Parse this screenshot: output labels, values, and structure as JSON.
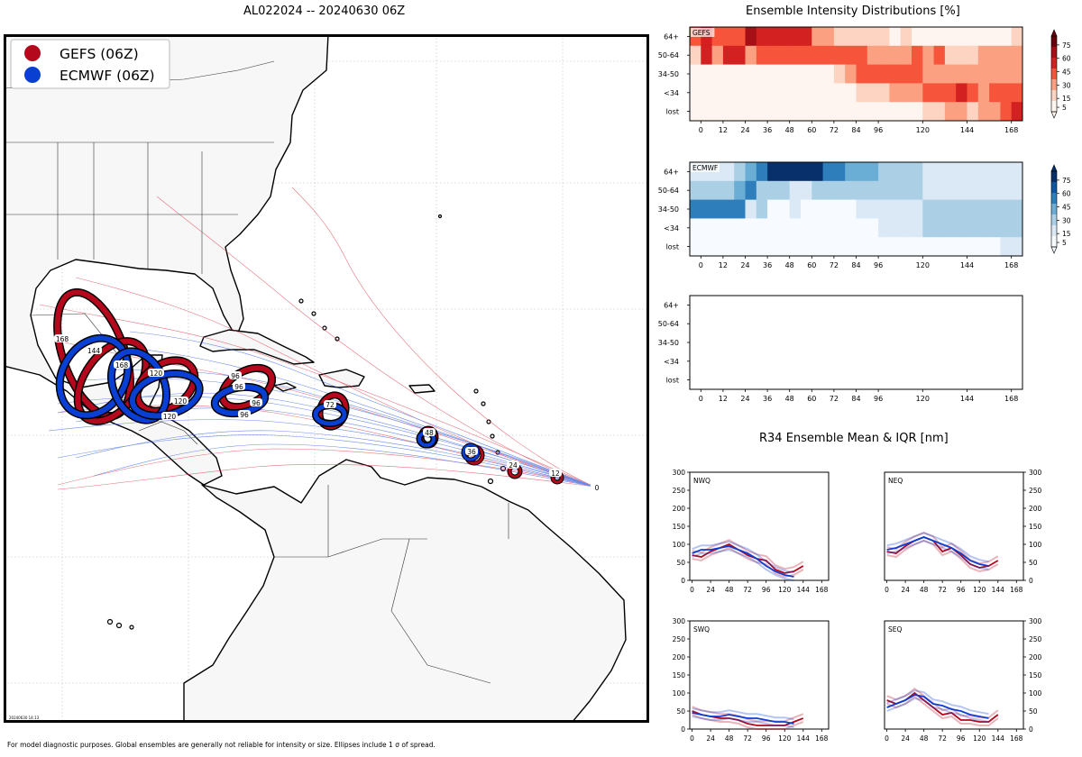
{
  "header": {
    "map_title": "AL022024 -- 20240630 06Z",
    "intensity_title": "Ensemble Intensity Distributions [%]",
    "r34_title": "R34 Ensemble Mean & IQR [nm]"
  },
  "legend": [
    {
      "label": "GEFS (06Z)",
      "color": "#b5081c"
    },
    {
      "label": "ECMWF (06Z)",
      "color": "#0a3fd4"
    }
  ],
  "map": {
    "stamp": "20240630 14:13",
    "gefs_labels": [
      "0",
      "12",
      "24",
      "36",
      "48",
      "72",
      "96",
      "120",
      "144",
      "168"
    ],
    "ecmwf_labels": [
      "36",
      "48",
      "72",
      "96",
      "120",
      "144",
      "168"
    ]
  },
  "footnote": "For model diagnostic purposes. Global ensembles are generally not reliable for intensity or size. Ellipses include 1 σ of spread.",
  "chart_data": [
    {
      "type": "heatmap",
      "title": "GEFS",
      "x_ticks": [
        0,
        12,
        24,
        36,
        48,
        60,
        72,
        84,
        96,
        120,
        144,
        168
      ],
      "x_range": [
        -6,
        174
      ],
      "y_categories": [
        "64+",
        "50-64",
        "34-50",
        "<34",
        "lost"
      ],
      "colorbar_ticks": [
        5,
        15,
        30,
        45,
        60,
        75
      ],
      "colors": [
        "#fff5f0",
        "#fdd3c1",
        "#fca082",
        "#f6553c",
        "#d32020",
        "#a50f15",
        "#67000d"
      ],
      "cells_per_row": 30,
      "values": [
        [
          45,
          55,
          35,
          35,
          45,
          70,
          60,
          55,
          55,
          55,
          55,
          30,
          25,
          15,
          15,
          15,
          15,
          10,
          5,
          15,
          5,
          5,
          5,
          5,
          5,
          5,
          5,
          5,
          5,
          15
        ],
        [
          15,
          55,
          30,
          60,
          60,
          30,
          35,
          35,
          35,
          35,
          35,
          45,
          45,
          45,
          45,
          35,
          25,
          25,
          25,
          25,
          35,
          30,
          35,
          15,
          15,
          15,
          25,
          25,
          25,
          25
        ],
        [
          5,
          5,
          5,
          5,
          5,
          5,
          5,
          5,
          5,
          5,
          5,
          5,
          5,
          10,
          25,
          45,
          45,
          45,
          45,
          45,
          45,
          25,
          25,
          25,
          25,
          25,
          25,
          25,
          25,
          25
        ],
        [
          5,
          5,
          5,
          5,
          5,
          5,
          5,
          5,
          5,
          5,
          5,
          5,
          5,
          5,
          5,
          10,
          15,
          15,
          30,
          30,
          30,
          45,
          45,
          45,
          60,
          45,
          30,
          45,
          45,
          35
        ],
        [
          5,
          5,
          5,
          5,
          5,
          5,
          5,
          5,
          5,
          5,
          5,
          5,
          5,
          5,
          5,
          5,
          5,
          5,
          5,
          5,
          5,
          15,
          15,
          30,
          30,
          15,
          30,
          30,
          45,
          60
        ]
      ]
    },
    {
      "type": "heatmap",
      "title": "ECMWF",
      "x_ticks": [
        0,
        12,
        24,
        36,
        48,
        60,
        72,
        84,
        96,
        120,
        144,
        168
      ],
      "x_range": [
        -6,
        174
      ],
      "y_categories": [
        "64+",
        "50-64",
        "34-50",
        "<34",
        "lost"
      ],
      "colorbar_ticks": [
        5,
        15,
        30,
        45,
        60,
        75
      ],
      "colors": [
        "#f7fbff",
        "#dbe9f6",
        "#abd0e6",
        "#6aaed6",
        "#2e7ebc",
        "#0d57a1",
        "#08306b"
      ],
      "cells_per_row": 30,
      "values": [
        [
          15,
          15,
          15,
          15,
          30,
          45,
          60,
          75,
          75,
          75,
          75,
          75,
          60,
          60,
          45,
          45,
          45,
          30,
          30,
          30,
          30,
          15,
          15,
          15,
          15,
          15,
          15,
          15,
          15,
          15
        ],
        [
          30,
          30,
          30,
          30,
          45,
          60,
          30,
          30,
          30,
          15,
          15,
          30,
          30,
          30,
          30,
          30,
          30,
          30,
          30,
          30,
          30,
          15,
          15,
          15,
          15,
          15,
          15,
          15,
          15,
          15
        ],
        [
          60,
          60,
          60,
          60,
          60,
          15,
          30,
          5,
          5,
          15,
          5,
          5,
          5,
          5,
          5,
          15,
          15,
          15,
          15,
          15,
          15,
          30,
          30,
          30,
          30,
          30,
          30,
          30,
          30,
          30
        ],
        [
          5,
          5,
          5,
          5,
          5,
          5,
          5,
          5,
          5,
          5,
          5,
          5,
          5,
          5,
          5,
          5,
          5,
          15,
          15,
          15,
          15,
          30,
          30,
          30,
          30,
          30,
          30,
          30,
          30,
          30
        ],
        [
          5,
          5,
          5,
          5,
          5,
          5,
          5,
          5,
          5,
          5,
          5,
          5,
          5,
          5,
          5,
          5,
          5,
          5,
          5,
          5,
          5,
          5,
          5,
          5,
          5,
          5,
          5,
          5,
          15,
          15
        ]
      ]
    },
    {
      "type": "heatmap",
      "title": "",
      "x_ticks": [
        0,
        12,
        24,
        36,
        48,
        60,
        72,
        84,
        96,
        120,
        144,
        168
      ],
      "x_range": [
        -6,
        174
      ],
      "y_categories": [
        "64+",
        "50-64",
        "34-50",
        "<34",
        "lost"
      ],
      "values": []
    },
    {
      "type": "line",
      "quadrants": [
        {
          "name": "NWQ",
          "gefs": [
            70,
            65,
            80,
            90,
            100,
            85,
            70,
            60,
            55,
            30,
            20,
            25,
            40
          ],
          "ecmwf": [
            75,
            85,
            85,
            90,
            95,
            85,
            75,
            60,
            40,
            25,
            15,
            10
          ]
        },
        {
          "name": "NEQ",
          "gefs": [
            80,
            75,
            95,
            110,
            120,
            110,
            80,
            90,
            70,
            45,
            35,
            40,
            55
          ],
          "ecmwf": [
            85,
            90,
            100,
            110,
            120,
            110,
            100,
            90,
            75,
            55,
            45,
            40
          ]
        },
        {
          "name": "SWQ",
          "gefs": [
            50,
            40,
            35,
            30,
            30,
            25,
            15,
            10,
            10,
            10,
            10,
            20,
            30
          ],
          "ecmwf": [
            45,
            40,
            35,
            35,
            40,
            35,
            30,
            30,
            25,
            20,
            20,
            15
          ]
        },
        {
          "name": "SEQ",
          "gefs": [
            80,
            70,
            80,
            100,
            80,
            60,
            40,
            45,
            25,
            25,
            20,
            20,
            40
          ],
          "ecmwf": [
            60,
            70,
            80,
            95,
            90,
            70,
            65,
            55,
            50,
            40,
            35,
            30
          ]
        }
      ],
      "x_ticks": [
        0,
        24,
        48,
        72,
        96,
        120,
        144,
        168
      ],
      "y_ticks": [
        0,
        50,
        100,
        150,
        200,
        250,
        300
      ],
      "ylim": [
        0,
        300
      ],
      "gefs_color": "#b5081c",
      "ecmwf_color": "#0a3fd4"
    }
  ]
}
